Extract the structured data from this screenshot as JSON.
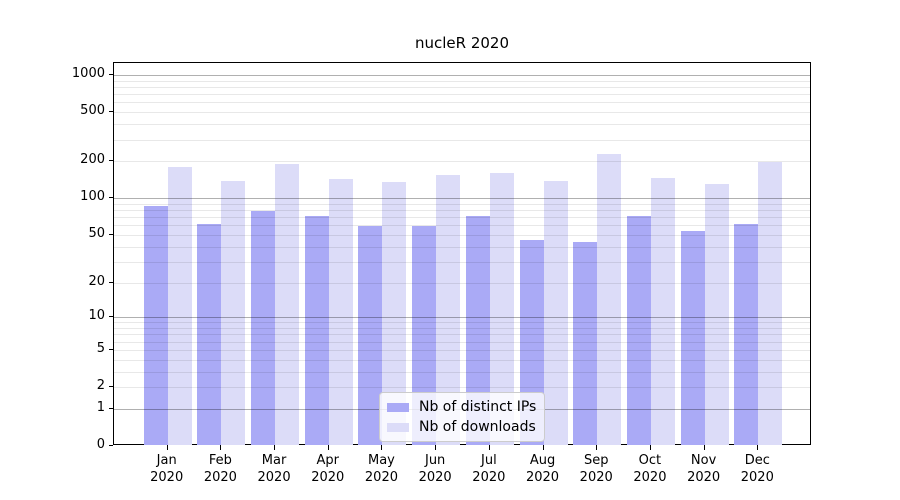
{
  "figure": {
    "title": "nucleR 2020"
  },
  "chart_data": {
    "type": "bar",
    "title": "nucleR 2020",
    "categories": [
      "Jan",
      "Feb",
      "Mar",
      "Apr",
      "May",
      "Jun",
      "Jul",
      "Aug",
      "Sep",
      "Oct",
      "Nov",
      "Dec"
    ],
    "year_label": "2020",
    "series": [
      {
        "name": "Nb of distinct IPs",
        "color": "#aaaaf6",
        "values": [
          86,
          62,
          78,
          71,
          59,
          59,
          71,
          45,
          44,
          72,
          54,
          62
        ]
      },
      {
        "name": "Nb of downloads",
        "color": "#dcdcf8",
        "values": [
          180,
          138,
          190,
          142,
          136,
          154,
          161,
          139,
          230,
          146,
          131,
          198
        ]
      }
    ],
    "yscale": "log1p",
    "yticks": [
      0,
      1,
      2,
      5,
      10,
      20,
      50,
      100,
      200,
      500,
      1000
    ],
    "major_gridlines": [
      1,
      10,
      100,
      1000
    ],
    "minor_gridline_decades": [
      1,
      10,
      100
    ],
    "ylim": [
      0,
      1250
    ],
    "grid": "horizontal",
    "legend_position": "lower-center-inside",
    "colors": {
      "major_grid": "#b0b0b0",
      "minor_grid": "#e6e6e6",
      "axis": "#000000",
      "background": "#ffffff"
    }
  }
}
